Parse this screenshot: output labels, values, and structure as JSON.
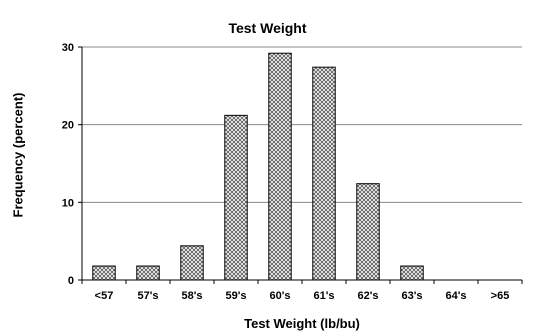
{
  "chart_data": {
    "type": "bar",
    "title": "Test Weight",
    "xlabel": "Test Weight (lb/bu)",
    "ylabel": "Frequency (percent)",
    "categories": [
      "<57",
      "57's",
      "58's",
      "59's",
      "60's",
      "61's",
      "62's",
      "63's",
      "64's",
      ">65"
    ],
    "values": [
      1.8,
      1.8,
      4.4,
      21.2,
      29.2,
      27.4,
      12.4,
      1.8,
      0,
      0
    ],
    "ylim": [
      0,
      30
    ],
    "yticks": [
      0,
      10,
      20,
      30
    ],
    "grid": true,
    "bar_pattern": "crosshatch",
    "colors": {
      "bar_fill": "#ffffff",
      "hatch": "#5a5a5a",
      "gridline": "#888888",
      "axis": "#000000"
    }
  }
}
